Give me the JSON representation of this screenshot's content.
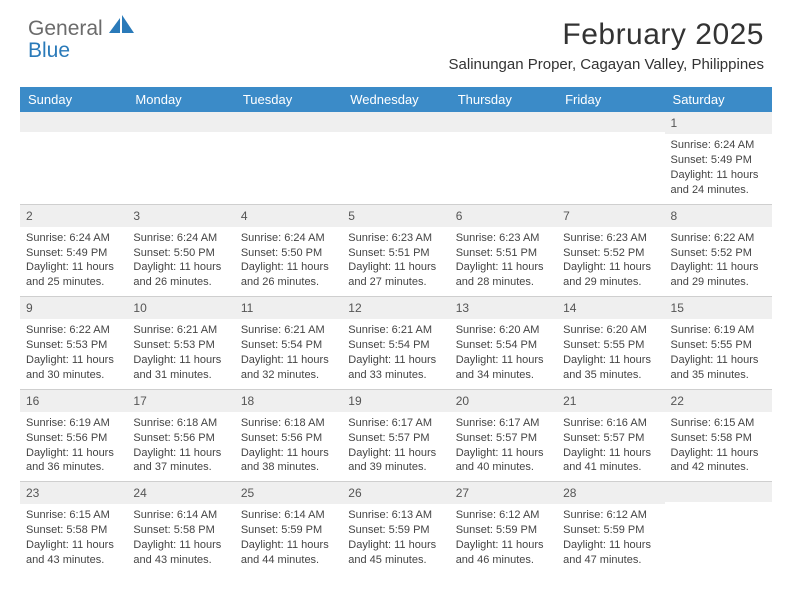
{
  "logo": {
    "textGray": "General",
    "textBlue": "Blue"
  },
  "title": "February 2025",
  "location": "Salinungan Proper, Cagayan Valley, Philippines",
  "colors": {
    "headerBg": "#3b8bc8",
    "headerText": "#ffffff",
    "dayStripBg": "#efefef",
    "cellText": "#444444",
    "divider": "#cfcfcf",
    "logoGray": "#6b6b6b",
    "logoBlue": "#2a7ab9"
  },
  "typography": {
    "titleSize": 30,
    "locationSize": 15,
    "headerSize": 13,
    "cellSize": 11,
    "dayNumSize": 12
  },
  "dayHeaders": [
    "Sunday",
    "Monday",
    "Tuesday",
    "Wednesday",
    "Thursday",
    "Friday",
    "Saturday"
  ],
  "weeks": [
    [
      {
        "n": "",
        "lines": []
      },
      {
        "n": "",
        "lines": []
      },
      {
        "n": "",
        "lines": []
      },
      {
        "n": "",
        "lines": []
      },
      {
        "n": "",
        "lines": []
      },
      {
        "n": "",
        "lines": []
      },
      {
        "n": "1",
        "lines": [
          "Sunrise: 6:24 AM",
          "Sunset: 5:49 PM",
          "Daylight: 11 hours and 24 minutes."
        ]
      }
    ],
    [
      {
        "n": "2",
        "lines": [
          "Sunrise: 6:24 AM",
          "Sunset: 5:49 PM",
          "Daylight: 11 hours and 25 minutes."
        ]
      },
      {
        "n": "3",
        "lines": [
          "Sunrise: 6:24 AM",
          "Sunset: 5:50 PM",
          "Daylight: 11 hours and 26 minutes."
        ]
      },
      {
        "n": "4",
        "lines": [
          "Sunrise: 6:24 AM",
          "Sunset: 5:50 PM",
          "Daylight: 11 hours and 26 minutes."
        ]
      },
      {
        "n": "5",
        "lines": [
          "Sunrise: 6:23 AM",
          "Sunset: 5:51 PM",
          "Daylight: 11 hours and 27 minutes."
        ]
      },
      {
        "n": "6",
        "lines": [
          "Sunrise: 6:23 AM",
          "Sunset: 5:51 PM",
          "Daylight: 11 hours and 28 minutes."
        ]
      },
      {
        "n": "7",
        "lines": [
          "Sunrise: 6:23 AM",
          "Sunset: 5:52 PM",
          "Daylight: 11 hours and 29 minutes."
        ]
      },
      {
        "n": "8",
        "lines": [
          "Sunrise: 6:22 AM",
          "Sunset: 5:52 PM",
          "Daylight: 11 hours and 29 minutes."
        ]
      }
    ],
    [
      {
        "n": "9",
        "lines": [
          "Sunrise: 6:22 AM",
          "Sunset: 5:53 PM",
          "Daylight: 11 hours and 30 minutes."
        ]
      },
      {
        "n": "10",
        "lines": [
          "Sunrise: 6:21 AM",
          "Sunset: 5:53 PM",
          "Daylight: 11 hours and 31 minutes."
        ]
      },
      {
        "n": "11",
        "lines": [
          "Sunrise: 6:21 AM",
          "Sunset: 5:54 PM",
          "Daylight: 11 hours and 32 minutes."
        ]
      },
      {
        "n": "12",
        "lines": [
          "Sunrise: 6:21 AM",
          "Sunset: 5:54 PM",
          "Daylight: 11 hours and 33 minutes."
        ]
      },
      {
        "n": "13",
        "lines": [
          "Sunrise: 6:20 AM",
          "Sunset: 5:54 PM",
          "Daylight: 11 hours and 34 minutes."
        ]
      },
      {
        "n": "14",
        "lines": [
          "Sunrise: 6:20 AM",
          "Sunset: 5:55 PM",
          "Daylight: 11 hours and 35 minutes."
        ]
      },
      {
        "n": "15",
        "lines": [
          "Sunrise: 6:19 AM",
          "Sunset: 5:55 PM",
          "Daylight: 11 hours and 35 minutes."
        ]
      }
    ],
    [
      {
        "n": "16",
        "lines": [
          "Sunrise: 6:19 AM",
          "Sunset: 5:56 PM",
          "Daylight: 11 hours and 36 minutes."
        ]
      },
      {
        "n": "17",
        "lines": [
          "Sunrise: 6:18 AM",
          "Sunset: 5:56 PM",
          "Daylight: 11 hours and 37 minutes."
        ]
      },
      {
        "n": "18",
        "lines": [
          "Sunrise: 6:18 AM",
          "Sunset: 5:56 PM",
          "Daylight: 11 hours and 38 minutes."
        ]
      },
      {
        "n": "19",
        "lines": [
          "Sunrise: 6:17 AM",
          "Sunset: 5:57 PM",
          "Daylight: 11 hours and 39 minutes."
        ]
      },
      {
        "n": "20",
        "lines": [
          "Sunrise: 6:17 AM",
          "Sunset: 5:57 PM",
          "Daylight: 11 hours and 40 minutes."
        ]
      },
      {
        "n": "21",
        "lines": [
          "Sunrise: 6:16 AM",
          "Sunset: 5:57 PM",
          "Daylight: 11 hours and 41 minutes."
        ]
      },
      {
        "n": "22",
        "lines": [
          "Sunrise: 6:15 AM",
          "Sunset: 5:58 PM",
          "Daylight: 11 hours and 42 minutes."
        ]
      }
    ],
    [
      {
        "n": "23",
        "lines": [
          "Sunrise: 6:15 AM",
          "Sunset: 5:58 PM",
          "Daylight: 11 hours and 43 minutes."
        ]
      },
      {
        "n": "24",
        "lines": [
          "Sunrise: 6:14 AM",
          "Sunset: 5:58 PM",
          "Daylight: 11 hours and 43 minutes."
        ]
      },
      {
        "n": "25",
        "lines": [
          "Sunrise: 6:14 AM",
          "Sunset: 5:59 PM",
          "Daylight: 11 hours and 44 minutes."
        ]
      },
      {
        "n": "26",
        "lines": [
          "Sunrise: 6:13 AM",
          "Sunset: 5:59 PM",
          "Daylight: 11 hours and 45 minutes."
        ]
      },
      {
        "n": "27",
        "lines": [
          "Sunrise: 6:12 AM",
          "Sunset: 5:59 PM",
          "Daylight: 11 hours and 46 minutes."
        ]
      },
      {
        "n": "28",
        "lines": [
          "Sunrise: 6:12 AM",
          "Sunset: 5:59 PM",
          "Daylight: 11 hours and 47 minutes."
        ]
      },
      {
        "n": "",
        "lines": []
      }
    ]
  ]
}
